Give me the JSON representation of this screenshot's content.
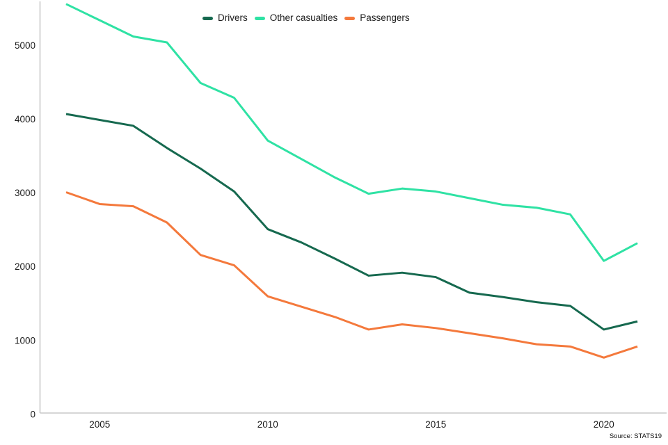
{
  "page": {
    "background": "#ffffff"
  },
  "legend": {
    "items": [
      {
        "label": "Drivers",
        "color": "#16694f"
      },
      {
        "label": "Other casualties",
        "color": "#2fe2a4"
      },
      {
        "label": "Passengers",
        "color": "#f4793c"
      }
    ]
  },
  "source_note": "Source: STATS19",
  "axis": {
    "line_color": "#c9c9c9",
    "label_color": "#1a1a1a"
  },
  "chart_data": {
    "type": "line",
    "title": "",
    "xlabel": "",
    "ylabel": "",
    "x": [
      2004,
      2005,
      2006,
      2007,
      2008,
      2009,
      2010,
      2011,
      2012,
      2013,
      2014,
      2015,
      2016,
      2017,
      2018,
      2019,
      2020,
      2021
    ],
    "series": [
      {
        "name": "Drivers",
        "color": "#16694f",
        "values": [
          4070,
          3990,
          3910,
          3610,
          3330,
          3020,
          2510,
          2330,
          2110,
          1880,
          1920,
          1860,
          1650,
          1590,
          1520,
          1470,
          1150,
          1260
        ]
      },
      {
        "name": "Other casualties",
        "color": "#2fe2a4",
        "values": [
          5560,
          5340,
          5120,
          5040,
          4490,
          4290,
          3710,
          3460,
          3210,
          2990,
          3060,
          3020,
          2930,
          2840,
          2800,
          2710,
          2080,
          2320
        ]
      },
      {
        "name": "Passengers",
        "color": "#f4793c",
        "values": [
          3010,
          2850,
          2820,
          2600,
          2160,
          2020,
          1600,
          1460,
          1320,
          1150,
          1220,
          1170,
          1100,
          1030,
          950,
          920,
          770,
          920
        ]
      }
    ],
    "xticks": [
      "2005",
      "2010",
      "2015",
      "2020"
    ],
    "xtick_years": [
      2005,
      2010,
      2015,
      2020
    ],
    "yticks": [
      0,
      1000,
      2000,
      3000,
      4000,
      5000
    ],
    "xlim": [
      2004,
      2021
    ],
    "ylim": [
      0,
      5600
    ],
    "grid": false,
    "legend_position": "top-center"
  }
}
